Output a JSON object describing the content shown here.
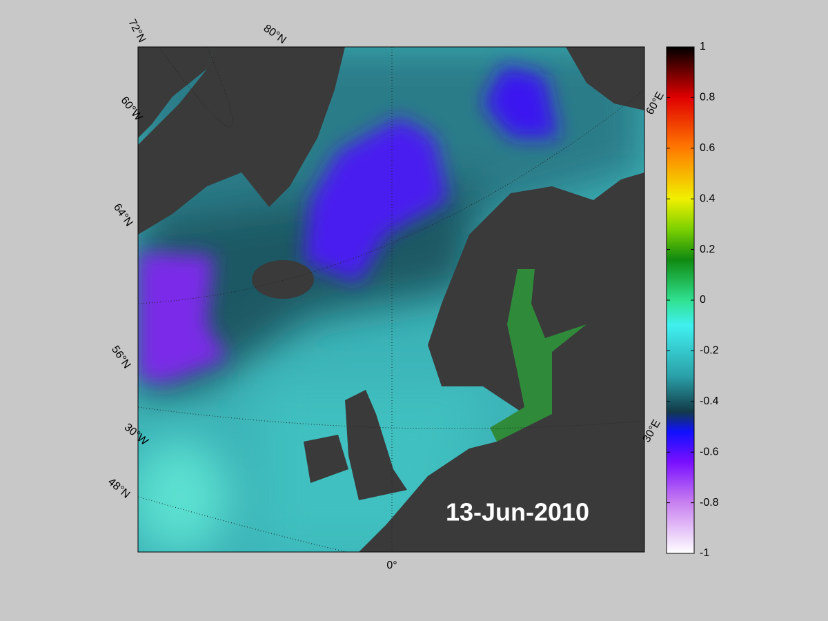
{
  "map": {
    "graticule_labels": [
      "72°N",
      "80°N",
      "60°W",
      "64°N",
      "56°N",
      "30°W",
      "48°N",
      "0°",
      "60°E",
      "30°E"
    ],
    "date": "13-Jun-2010"
  },
  "colorbar": {
    "lim": [
      -1,
      1
    ],
    "ticks": [
      1,
      0.8,
      0.6,
      0.4,
      0.2,
      0,
      -0.2,
      -0.4,
      -0.6,
      -0.8,
      -1
    ]
  }
}
